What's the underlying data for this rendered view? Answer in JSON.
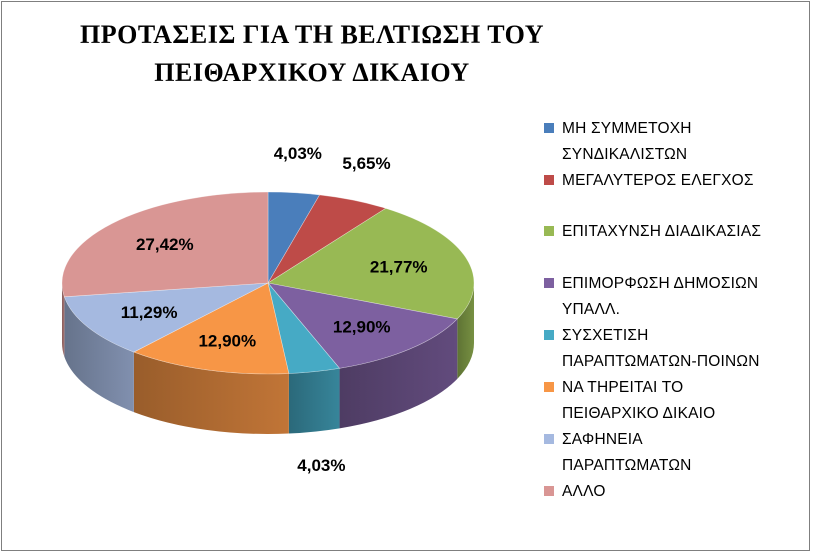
{
  "chart_data": {
    "type": "pie",
    "title": [
      "ΠΡΟΤΑΣΕΙΣ ΓΙΑ ΤΗ ΒΕΛΤΙΩΣΗ ΤΟΥ",
      "ΠΕΙΘΑΡΧΙΚΟΥ ΔΙΚΑΙΟΥ"
    ],
    "legend_position": "right",
    "slices": [
      {
        "label": "ΜΗ ΣΥΜΜΕΤΟΧΗ ΣΥΝΔΙΚΑΛΙΣΤΩΝ",
        "legend_lines": [
          "ΜΗ ΣΥΜΜΕΤΟΧΗ",
          "ΣΥΝΔΙΚΑΛΙΣΤΩΝ"
        ],
        "value": 4.03,
        "data_label": "4,03%",
        "color": "#4a7ebb"
      },
      {
        "label": "ΜΕΓΑΛΥΤΕΡΟΣ ΕΛΕΓΧΟΣ",
        "legend_lines": [
          "ΜΕΓΑΛΥΤΕΡΟΣ ΕΛΕΓΧΟΣ"
        ],
        "value": 5.65,
        "data_label": "5,65%",
        "color": "#be4b48"
      },
      {
        "label": "ΕΠΙΤΑΧΥΝΣΗ ΔΙΑΔΙΚΑΣΙΑΣ",
        "legend_lines": [
          "ΕΠΙΤΑΧΥΝΣΗ ΔΙΑΔΙΚΑΣΙΑΣ"
        ],
        "value": 21.77,
        "data_label": "21,77%",
        "color": "#98b954"
      },
      {
        "label": "ΕΠΙΜΟΡΦΩΣΗ ΔΗΜΟΣΙΩΝ ΥΠΑΛΛ.",
        "legend_lines": [
          "ΕΠΙΜΟΡΦΩΣΗ ΔΗΜΟΣΙΩΝ",
          "ΥΠΑΛΛ."
        ],
        "value": 12.9,
        "data_label": "12,90%",
        "color": "#7d60a0"
      },
      {
        "label": "ΣΥΣΧΕΤΙΣΗ ΠΑΡΑΠΤΩΜΑΤΩΝ-ΠΟΙΝΩΝ",
        "legend_lines": [
          "ΣΥΣΧΕΤΙΣΗ",
          "ΠΑΡΑΠΤΩΜΑΤΩΝ-ΠΟΙΝΩΝ"
        ],
        "value": 4.03,
        "data_label": "4,03%",
        "color": "#46aac5"
      },
      {
        "label": "ΝΑ ΤΗΡΕΙΤΑΙ ΤΟ ΠΕΙΘΑΡΧΙΚΟ ΔΙΚΑΙΟ",
        "legend_lines": [
          "ΝΑ ΤΗΡΕΙΤΑΙ ΤΟ",
          "ΠΕΙΘΑΡΧΙΚΟ ΔΙΚΑΙΟ"
        ],
        "value": 12.9,
        "data_label": "12,90%",
        "color": "#f79646"
      },
      {
        "label": "ΣΑΦΗΝΕΙΑ ΠΑΡΑΠΤΩΜΑΤΩΝ",
        "legend_lines": [
          "ΣΑΦΗΝΕΙΑ",
          "ΠΑΡΑΠΤΩΜΑΤΩΝ"
        ],
        "value": 11.29,
        "data_label": "11,29%",
        "color": "#a5b9e0"
      },
      {
        "label": "ΑΛΛΟ",
        "legend_lines": [
          "ΑΛΛΟ"
        ],
        "value": 27.42,
        "data_label": "27,42%",
        "color": "#d99694"
      }
    ]
  }
}
